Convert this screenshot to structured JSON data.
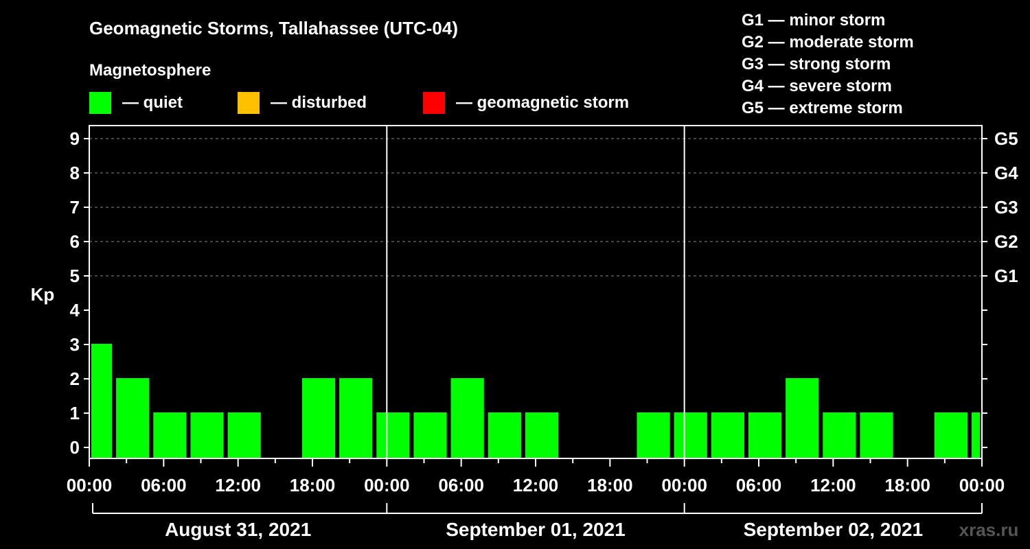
{
  "chart_data": {
    "type": "bar",
    "title": "Geomagnetic Storms, Tallahassee (UTC-04)",
    "ylabel": "Kp",
    "ylim": [
      0,
      9
    ],
    "yticks": [
      "0",
      "1",
      "2",
      "3",
      "4",
      "5",
      "6",
      "7",
      "8",
      "9"
    ],
    "right_ticks": [
      {
        "kp": 5,
        "label": "G1"
      },
      {
        "kp": 6,
        "label": "G2"
      },
      {
        "kp": 7,
        "label": "G3"
      },
      {
        "kp": 8,
        "label": "G4"
      },
      {
        "kp": 9,
        "label": "G5"
      }
    ],
    "legend_title": "Magnetosphere",
    "legend": [
      {
        "label": "— quiet",
        "color": "#00ff00"
      },
      {
        "label": "— disturbed",
        "color": "#ffc000"
      },
      {
        "label": "— geomagnetic storm",
        "color": "#ff0000"
      }
    ],
    "storm_scale": [
      "G1 — minor storm",
      "G2 — moderate storm",
      "G3 — strong storm",
      "G4 — severe storm",
      "G5 — extreme storm"
    ],
    "xticks": [
      "00:00",
      "06:00",
      "12:00",
      "18:00",
      "00:00",
      "06:00",
      "12:00",
      "18:00",
      "00:00",
      "06:00",
      "12:00",
      "18:00",
      "00:00"
    ],
    "days": [
      "August 31, 2021",
      "September 01, 2021",
      "September 02, 2021"
    ],
    "x_range_hours": [
      0,
      72
    ],
    "bar_color": "#00ff00",
    "bars": [
      {
        "start": 0,
        "end": 2,
        "kp": 3
      },
      {
        "start": 2,
        "end": 5,
        "kp": 2
      },
      {
        "start": 5,
        "end": 8,
        "kp": 1
      },
      {
        "start": 8,
        "end": 11,
        "kp": 1
      },
      {
        "start": 11,
        "end": 14,
        "kp": 1
      },
      {
        "start": 14,
        "end": 17,
        "kp": 0
      },
      {
        "start": 17,
        "end": 20,
        "kp": 2
      },
      {
        "start": 20,
        "end": 23,
        "kp": 2
      },
      {
        "start": 23,
        "end": 26,
        "kp": 1
      },
      {
        "start": 26,
        "end": 29,
        "kp": 1
      },
      {
        "start": 29,
        "end": 32,
        "kp": 2
      },
      {
        "start": 32,
        "end": 35,
        "kp": 1
      },
      {
        "start": 35,
        "end": 38,
        "kp": 1
      },
      {
        "start": 38,
        "end": 41,
        "kp": 0
      },
      {
        "start": 41,
        "end": 44,
        "kp": 0
      },
      {
        "start": 44,
        "end": 47,
        "kp": 1
      },
      {
        "start": 47,
        "end": 50,
        "kp": 1
      },
      {
        "start": 50,
        "end": 53,
        "kp": 1
      },
      {
        "start": 53,
        "end": 56,
        "kp": 1
      },
      {
        "start": 56,
        "end": 59,
        "kp": 2
      },
      {
        "start": 59,
        "end": 62,
        "kp": 1
      },
      {
        "start": 62,
        "end": 65,
        "kp": 1
      },
      {
        "start": 65,
        "end": 68,
        "kp": 0
      },
      {
        "start": 68,
        "end": 71,
        "kp": 1
      },
      {
        "start": 71,
        "end": 72,
        "kp": 1
      }
    ],
    "watermark": "xras.ru"
  }
}
